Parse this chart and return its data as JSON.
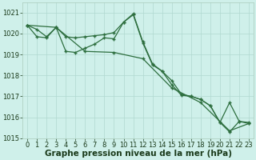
{
  "background_color": "#cff0ea",
  "grid_color": "#b0d8d0",
  "line_color": "#2d6e3e",
  "xlabel": "Graphe pression niveau de la mer (hPa)",
  "xlabel_fontsize": 7.5,
  "ylim": [
    1015.0,
    1021.5
  ],
  "xlim": [
    -0.5,
    23.5
  ],
  "yticks": [
    1015,
    1016,
    1017,
    1018,
    1019,
    1020,
    1021
  ],
  "xticks": [
    0,
    1,
    2,
    3,
    4,
    5,
    6,
    7,
    8,
    9,
    10,
    11,
    12,
    13,
    14,
    15,
    16,
    17,
    18,
    19,
    20,
    21,
    22,
    23
  ],
  "tick_fontsize": 6.0,
  "series_straight": {
    "x": [
      0,
      3,
      6,
      9,
      12,
      15,
      18,
      21,
      23
    ],
    "y": [
      1020.4,
      1020.3,
      1019.15,
      1019.1,
      1018.8,
      1017.4,
      1016.7,
      1015.35,
      1015.7
    ]
  },
  "series_peaked": {
    "x": [
      0,
      1,
      2,
      3,
      4,
      5,
      6,
      7,
      8,
      9,
      10,
      11,
      12,
      13,
      14,
      15,
      16,
      17,
      18,
      19,
      20,
      21,
      22,
      23
    ],
    "y": [
      1020.4,
      1020.2,
      1019.85,
      1020.3,
      1019.85,
      1019.8,
      1019.85,
      1019.9,
      1019.95,
      1020.05,
      1020.55,
      1020.95,
      1019.6,
      1018.55,
      1018.2,
      1017.55,
      1017.05,
      1017.0,
      1016.85,
      1016.55,
      1015.75,
      1016.7,
      1015.8,
      1015.7
    ]
  },
  "series_zigzag": {
    "x": [
      0,
      1,
      2,
      3,
      4,
      5,
      6,
      7,
      8,
      9,
      10,
      11,
      12,
      13,
      14,
      15,
      16,
      17,
      18,
      19,
      20,
      21,
      22,
      23
    ],
    "y": [
      1020.4,
      1019.85,
      1019.8,
      1020.3,
      1019.15,
      1019.1,
      1019.3,
      1019.5,
      1019.8,
      1019.75,
      1020.55,
      1020.9,
      1019.55,
      1018.5,
      1018.2,
      1017.75,
      1017.1,
      1017.0,
      1016.85,
      1016.55,
      1015.75,
      1015.3,
      1015.8,
      1015.75
    ]
  }
}
